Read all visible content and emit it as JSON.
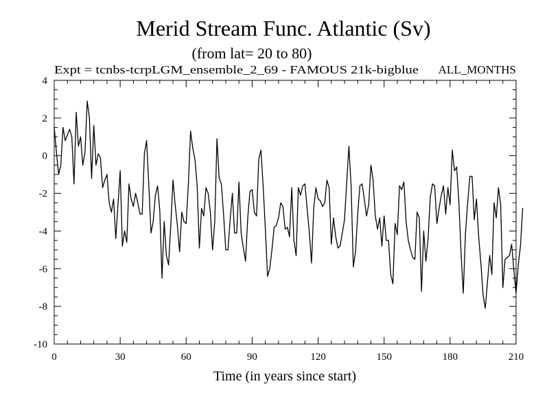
{
  "chart_data": {
    "type": "line",
    "title": "Merid Stream Func. Atlantic (Sv)",
    "subtitle": "(from lat= 20 to 80)",
    "experiment_label": "Expt = tcnbs-tcrpLGM_ensemble_2_69 - FAMOUS 21k-bigblue",
    "months_label": "ALL_MONTHS",
    "xlabel": "Time (in years since start)",
    "ylabel": "",
    "xlim": [
      0,
      210
    ],
    "ylim": [
      -10,
      4
    ],
    "x_ticks": [
      0,
      30,
      60,
      90,
      120,
      150,
      180,
      210
    ],
    "y_ticks": [
      4,
      2,
      0,
      -2,
      -4,
      -6,
      -8,
      -10
    ],
    "grid": false,
    "series": [
      {
        "name": "Merid Stream Func. Atlantic",
        "x_start": 0,
        "x_step": 1,
        "values": [
          1.5,
          0.2,
          -1.0,
          -0.5,
          1.5,
          0.8,
          1.1,
          1.4,
          1.0,
          -1.5,
          2.3,
          0.5,
          1.0,
          -0.5,
          0.2,
          2.9,
          2.0,
          -1.2,
          1.6,
          -0.5,
          0.1,
          -0.1,
          -1.7,
          -1.3,
          -1.0,
          -2.5,
          -3.0,
          -2.3,
          -4.4,
          -2.6,
          -0.8,
          -4.8,
          -4.0,
          -4.6,
          -1.5,
          -2.3,
          -2.7,
          -2.0,
          -2.5,
          -3.1,
          -3.1,
          0.1,
          0.8,
          -1.5,
          -4.1,
          -3.5,
          -2.1,
          -1.6,
          -2.9,
          -6.5,
          -3.5,
          -5.3,
          -5.8,
          -3.7,
          -1.3,
          -2.6,
          -3.7,
          -5.1,
          -3.0,
          -3.5,
          -3.6,
          -1.5,
          1.3,
          0.4,
          -0.2,
          -1.6,
          -4.9,
          -2.8,
          -3.2,
          -1.7,
          -2.0,
          -3.0,
          -5.0,
          -3.5,
          0.9,
          -1.2,
          -1.5,
          -3.1,
          -5.0,
          -5.0,
          -3.4,
          -2.0,
          -4.1,
          -4.1,
          -1.4,
          -4.1,
          -4.9,
          -5.6,
          -3.3,
          -1.9,
          -1.8,
          -3.0,
          -3.2,
          -0.2,
          0.3,
          -1.6,
          -3.9,
          -6.4,
          -6.0,
          -5.0,
          -3.8,
          -3.7,
          -3.3,
          -2.5,
          -2.7,
          -3.9,
          -3.8,
          -4.3,
          -1.7,
          -4.5,
          -5.3,
          -1.7,
          -2.1,
          -1.6,
          -1.5,
          -2.8,
          -4.1,
          -5.7,
          -2.8,
          -1.7,
          -2.3,
          -2.4,
          -2.7,
          -2.5,
          -1.3,
          -1.7,
          -4.7,
          -3.3,
          -4.3,
          -4.9,
          -4.8,
          -4.1,
          -3.4,
          -1.4,
          0.5,
          -1.6,
          -5.9,
          -5.1,
          -3.1,
          -1.6,
          -1.5,
          -2.3,
          -3.2,
          -2.6,
          -0.5,
          -1.3,
          -3.2,
          -3.9,
          -3.3,
          -4.8,
          -3.2,
          -4.5,
          -4.5,
          -6.3,
          -6.8,
          -3.6,
          -4.2,
          -1.6,
          -1.8,
          -1.4,
          -3.5,
          -4.5,
          -5.0,
          -5.4,
          -5.5,
          -3.0,
          -3.3,
          -7.2,
          -4.0,
          -5.6,
          -4.4,
          -2.2,
          -1.5,
          -1.6,
          -3.6,
          -2.8,
          -2.1,
          -1.6,
          -3.1,
          -1.7,
          -2.6,
          0.3,
          -0.8,
          -0.6,
          -2.5,
          -5.2,
          -7.3,
          -4.1,
          -2.5,
          -1.1,
          -1.1,
          -3.4,
          -2.3,
          -4.3,
          -5.7,
          -7.4,
          -8.1,
          -6.7,
          -5.3,
          -6.3,
          -2.5,
          -3.3,
          -1.7,
          -2.6,
          -7.0,
          -5.5,
          -5.4,
          -5.3,
          -4.7,
          -6.1,
          -7.3,
          -5.8,
          -4.8,
          -2.8
        ]
      }
    ]
  }
}
